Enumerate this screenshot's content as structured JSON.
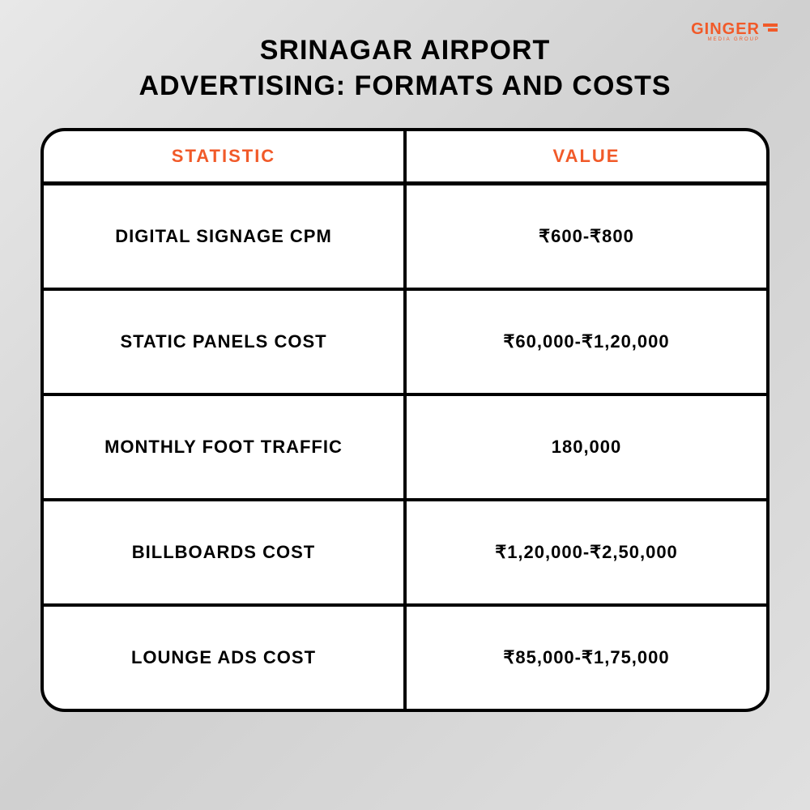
{
  "logo": {
    "text": "GINGER",
    "subtext": "MEDIA GROUP"
  },
  "title": {
    "line1": "SRINAGAR AIRPORT",
    "line2": "ADVERTISING: FORMATS AND COSTS"
  },
  "table": {
    "headers": {
      "statistic": "STATISTIC",
      "value": "VALUE"
    },
    "rows": [
      {
        "statistic": "DIGITAL SIGNAGE CPM",
        "value": "₹600-₹800"
      },
      {
        "statistic": "STATIC PANELS COST",
        "value": "₹60,000-₹1,20,000"
      },
      {
        "statistic": "MONTHLY FOOT TRAFFIC",
        "value": "180,000"
      },
      {
        "statistic": "BILLBOARDS COST",
        "value": "₹1,20,000-₹2,50,000"
      },
      {
        "statistic": "LOUNGE ADS COST",
        "value": "₹85,000-₹1,75,000"
      }
    ]
  },
  "colors": {
    "accent": "#f15a29",
    "text": "#000000",
    "background_gradient_start": "#e8e8e8",
    "background_gradient_end": "#d0d0d0",
    "table_background": "#ffffff",
    "border": "#000000"
  }
}
